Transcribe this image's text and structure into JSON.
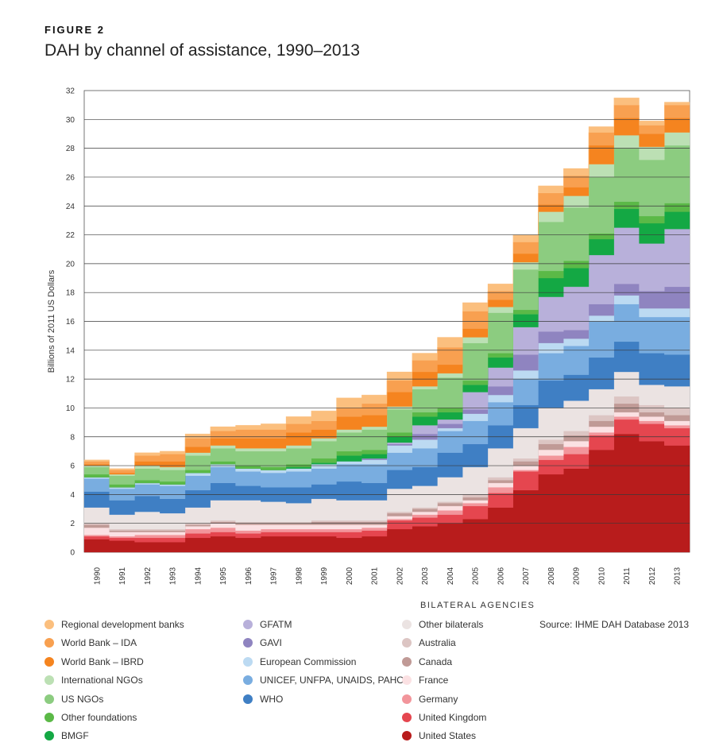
{
  "figure_label": "FIGURE 2",
  "title": "DAH by channel of assistance, 1990–2013",
  "source": "Source: IHME DAH Database 2013",
  "legend_heading": "BILATERAL AGENCIES",
  "chart_data": {
    "type": "area",
    "title": "DAH by channel of assistance, 1990–2013",
    "xlabel": "",
    "ylabel": "Billions of 2011 US Dollars",
    "ylim": [
      0,
      32
    ],
    "yticks": [
      0,
      2,
      4,
      6,
      8,
      10,
      12,
      14,
      16,
      18,
      20,
      22,
      24,
      26,
      28,
      30,
      32
    ],
    "grid": "horizontal",
    "stacked": true,
    "x": [
      "1990",
      "1991",
      "1992",
      "1993",
      "1994",
      "1995",
      "1996",
      "1997",
      "1998",
      "1999",
      "2000",
      "2001",
      "2002",
      "2003",
      "2004",
      "2005",
      "2006",
      "2007",
      "2008",
      "2009",
      "2010",
      "2011",
      "2012",
      "2013"
    ],
    "series": [
      {
        "name": "United States",
        "color": "#b81c1c",
        "values": [
          0.9,
          0.8,
          0.7,
          0.7,
          1.0,
          1.1,
          1.0,
          1.1,
          1.1,
          1.1,
          1.0,
          1.1,
          1.6,
          1.8,
          2.0,
          2.3,
          3.1,
          4.3,
          5.4,
          5.8,
          7.1,
          8.2,
          7.7,
          7.4
        ]
      },
      {
        "name": "United Kingdom",
        "color": "#e5464f",
        "values": [
          0.2,
          0.2,
          0.3,
          0.3,
          0.3,
          0.3,
          0.3,
          0.3,
          0.3,
          0.3,
          0.4,
          0.4,
          0.6,
          0.6,
          0.6,
          0.9,
          1.0,
          1.3,
          1.0,
          1.0,
          1.0,
          1.0,
          1.2,
          1.2
        ]
      },
      {
        "name": "Germany",
        "color": "#f2959b",
        "values": [
          0.1,
          0.1,
          0.2,
          0.2,
          0.3,
          0.3,
          0.2,
          0.2,
          0.2,
          0.2,
          0.2,
          0.2,
          0.1,
          0.2,
          0.3,
          0.2,
          0.4,
          0.1,
          0.3,
          0.5,
          0.2,
          0.2,
          0.2,
          0.2
        ]
      },
      {
        "name": "France",
        "color": "#fbe1e3",
        "values": [
          0.5,
          0.3,
          0.2,
          0.2,
          0.2,
          0.3,
          0.4,
          0.3,
          0.3,
          0.3,
          0.3,
          0.2,
          0.2,
          0.2,
          0.3,
          0.2,
          0.3,
          0.3,
          0.4,
          0.4,
          0.4,
          0.3,
          0.3,
          0.3
        ]
      },
      {
        "name": "Canada",
        "color": "#c09a96",
        "values": [
          0.2,
          0.1,
          0.1,
          0.1,
          0.1,
          0.1,
          0.1,
          0.1,
          0.1,
          0.2,
          0.2,
          0.2,
          0.2,
          0.2,
          0.2,
          0.2,
          0.2,
          0.3,
          0.4,
          0.4,
          0.4,
          0.6,
          0.3,
          0.4
        ]
      },
      {
        "name": "Australia",
        "color": "#dcc5c3",
        "values": [
          0.1,
          0.1,
          0.1,
          0.1,
          0.1,
          0.1,
          0.1,
          0.1,
          0.1,
          0.1,
          0.1,
          0.1,
          0.1,
          0.1,
          0.1,
          0.2,
          0.2,
          0.2,
          0.3,
          0.3,
          0.4,
          0.5,
          0.5,
          0.5
        ]
      },
      {
        "name": "Other bilaterals",
        "color": "#ebe3e2",
        "values": [
          1.1,
          1.0,
          1.2,
          1.1,
          1.1,
          1.4,
          1.5,
          1.4,
          1.3,
          1.5,
          1.4,
          1.4,
          1.6,
          1.5,
          1.7,
          1.9,
          2.0,
          2.1,
          2.2,
          2.1,
          1.8,
          1.7,
          1.4,
          1.5
        ]
      },
      {
        "name": "WHO",
        "color": "#3f7fc4",
        "values": [
          1.1,
          1.0,
          1.1,
          1.0,
          1.2,
          1.2,
          1.0,
          1.0,
          1.1,
          1.0,
          1.3,
          1.2,
          1.3,
          1.3,
          1.7,
          1.6,
          1.6,
          1.6,
          1.9,
          1.8,
          2.2,
          2.1,
          2.2,
          2.2
        ]
      },
      {
        "name": "UNICEF, UNFPA, UNAIDS, PAHO",
        "color": "#79ade0",
        "values": [
          0.9,
          0.8,
          0.8,
          0.9,
          1.0,
          1.1,
          1.0,
          1.0,
          1.1,
          1.1,
          1.2,
          1.3,
          1.2,
          1.3,
          1.5,
          1.6,
          1.6,
          1.8,
          1.9,
          2.0,
          2.5,
          2.6,
          2.5,
          2.6
        ]
      },
      {
        "name": "European Commission",
        "color": "#bcdaf2",
        "values": [
          0.1,
          0.1,
          0.1,
          0.1,
          0.2,
          0.2,
          0.2,
          0.2,
          0.2,
          0.3,
          0.2,
          0.3,
          0.5,
          0.6,
          0.2,
          0.5,
          0.5,
          0.6,
          0.7,
          0.5,
          0.4,
          0.6,
          0.6,
          0.6
        ]
      },
      {
        "name": "GAVI",
        "color": "#8f84c0",
        "values": [
          0,
          0,
          0,
          0,
          0,
          0,
          0,
          0,
          0,
          0,
          0,
          0.1,
          0.1,
          0.4,
          0.3,
          0.3,
          0.6,
          1.1,
          0.8,
          0.6,
          0.8,
          0.8,
          1.2,
          1.5
        ]
      },
      {
        "name": "GFATM",
        "color": "#b8b0da",
        "values": [
          0,
          0,
          0,
          0,
          0,
          0,
          0,
          0,
          0,
          0,
          0,
          0,
          0.1,
          0.6,
          0.3,
          1.2,
          1.3,
          1.9,
          2.4,
          3.0,
          3.4,
          3.9,
          3.3,
          4.0
        ]
      },
      {
        "name": "BMGF",
        "color": "#14a844",
        "values": [
          0,
          0,
          0,
          0,
          0,
          0,
          0,
          0,
          0.1,
          0.1,
          0.4,
          0.3,
          0.4,
          0.6,
          0.5,
          0.5,
          0.7,
          0.9,
          1.3,
          1.3,
          1.1,
          1.3,
          1.4,
          1.2
        ]
      },
      {
        "name": "Other foundations",
        "color": "#5bb947",
        "values": [
          0.2,
          0.2,
          0.2,
          0.2,
          0.2,
          0.2,
          0.2,
          0.2,
          0.2,
          0.3,
          0.3,
          0.3,
          0.3,
          0.3,
          0.3,
          0.3,
          0.3,
          0.3,
          0.5,
          0.5,
          0.4,
          0.5,
          0.5,
          0.6
        ]
      },
      {
        "name": "US NGOs",
        "color": "#8ccc80",
        "values": [
          0.5,
          0.6,
          0.8,
          0.8,
          1.0,
          0.9,
          1.0,
          1.1,
          1.1,
          1.2,
          1.3,
          1.4,
          1.6,
          1.6,
          2.1,
          2.6,
          2.8,
          2.8,
          3.4,
          3.7,
          3.9,
          3.7,
          3.9,
          4.0
        ]
      },
      {
        "name": "International NGOs",
        "color": "#bce0b4",
        "values": [
          0.1,
          0.1,
          0.2,
          0.2,
          0.2,
          0.2,
          0.2,
          0.2,
          0.2,
          0.2,
          0.2,
          0.2,
          0.2,
          0.2,
          0.3,
          0.4,
          0.4,
          0.5,
          0.7,
          0.8,
          0.9,
          0.9,
          0.9,
          0.9
        ]
      },
      {
        "name": "World Bank – IBRD",
        "color": "#f5841f",
        "values": [
          0.1,
          0.1,
          0.3,
          0.4,
          0.4,
          0.5,
          0.7,
          0.7,
          0.9,
          0.6,
          0.9,
          0.8,
          1.0,
          1.0,
          0.6,
          0.6,
          0.5,
          0.6,
          0.5,
          0.6,
          1.3,
          1.2,
          0.9,
          1.0
        ]
      },
      {
        "name": "World Bank – IDA",
        "color": "#f8a050",
        "values": [
          0.2,
          0.2,
          0.4,
          0.5,
          0.6,
          0.5,
          0.6,
          0.6,
          0.6,
          0.6,
          0.6,
          0.8,
          0.8,
          0.8,
          1.2,
          1.2,
          0.6,
          0.8,
          0.8,
          0.8,
          0.9,
          0.9,
          0.6,
          0.9
        ]
      },
      {
        "name": "Regional development banks",
        "color": "#fbbf7e",
        "values": [
          0.1,
          0.1,
          0.2,
          0.2,
          0.3,
          0.3,
          0.3,
          0.4,
          0.5,
          0.7,
          0.7,
          0.6,
          0.6,
          0.5,
          0.7,
          0.6,
          0.5,
          0.5,
          0.5,
          0.5,
          0.4,
          0.5,
          0.3,
          0.2
        ]
      }
    ]
  },
  "legend": {
    "col1": [
      {
        "label": "Regional development banks",
        "color": "#fbbf7e"
      },
      {
        "label": "World Bank – IDA",
        "color": "#f8a050"
      },
      {
        "label": "World Bank – IBRD",
        "color": "#f5841f"
      },
      {
        "label": "International NGOs",
        "color": "#bce0b4"
      },
      {
        "label": "US NGOs",
        "color": "#8ccc80"
      },
      {
        "label": "Other foundations",
        "color": "#5bb947"
      },
      {
        "label": "BMGF",
        "color": "#14a844"
      }
    ],
    "col2": [
      {
        "label": "GFATM",
        "color": "#b8b0da"
      },
      {
        "label": "GAVI",
        "color": "#8f84c0"
      },
      {
        "label": "European Commission",
        "color": "#bcdaf2"
      },
      {
        "label": "UNICEF, UNFPA, UNAIDS,  PAHO",
        "color": "#79ade0"
      },
      {
        "label": "WHO",
        "color": "#3f7fc4"
      }
    ],
    "col3": [
      {
        "label": "Other bilaterals",
        "color": "#ebe3e2"
      },
      {
        "label": "Australia",
        "color": "#dcc5c3"
      },
      {
        "label": "Canada",
        "color": "#c09a96"
      },
      {
        "label": "France",
        "color": "#fbe1e3"
      },
      {
        "label": "Germany",
        "color": "#f2959b"
      },
      {
        "label": "United Kingdom",
        "color": "#e5464f"
      },
      {
        "label": "United States",
        "color": "#b81c1c"
      }
    ]
  }
}
